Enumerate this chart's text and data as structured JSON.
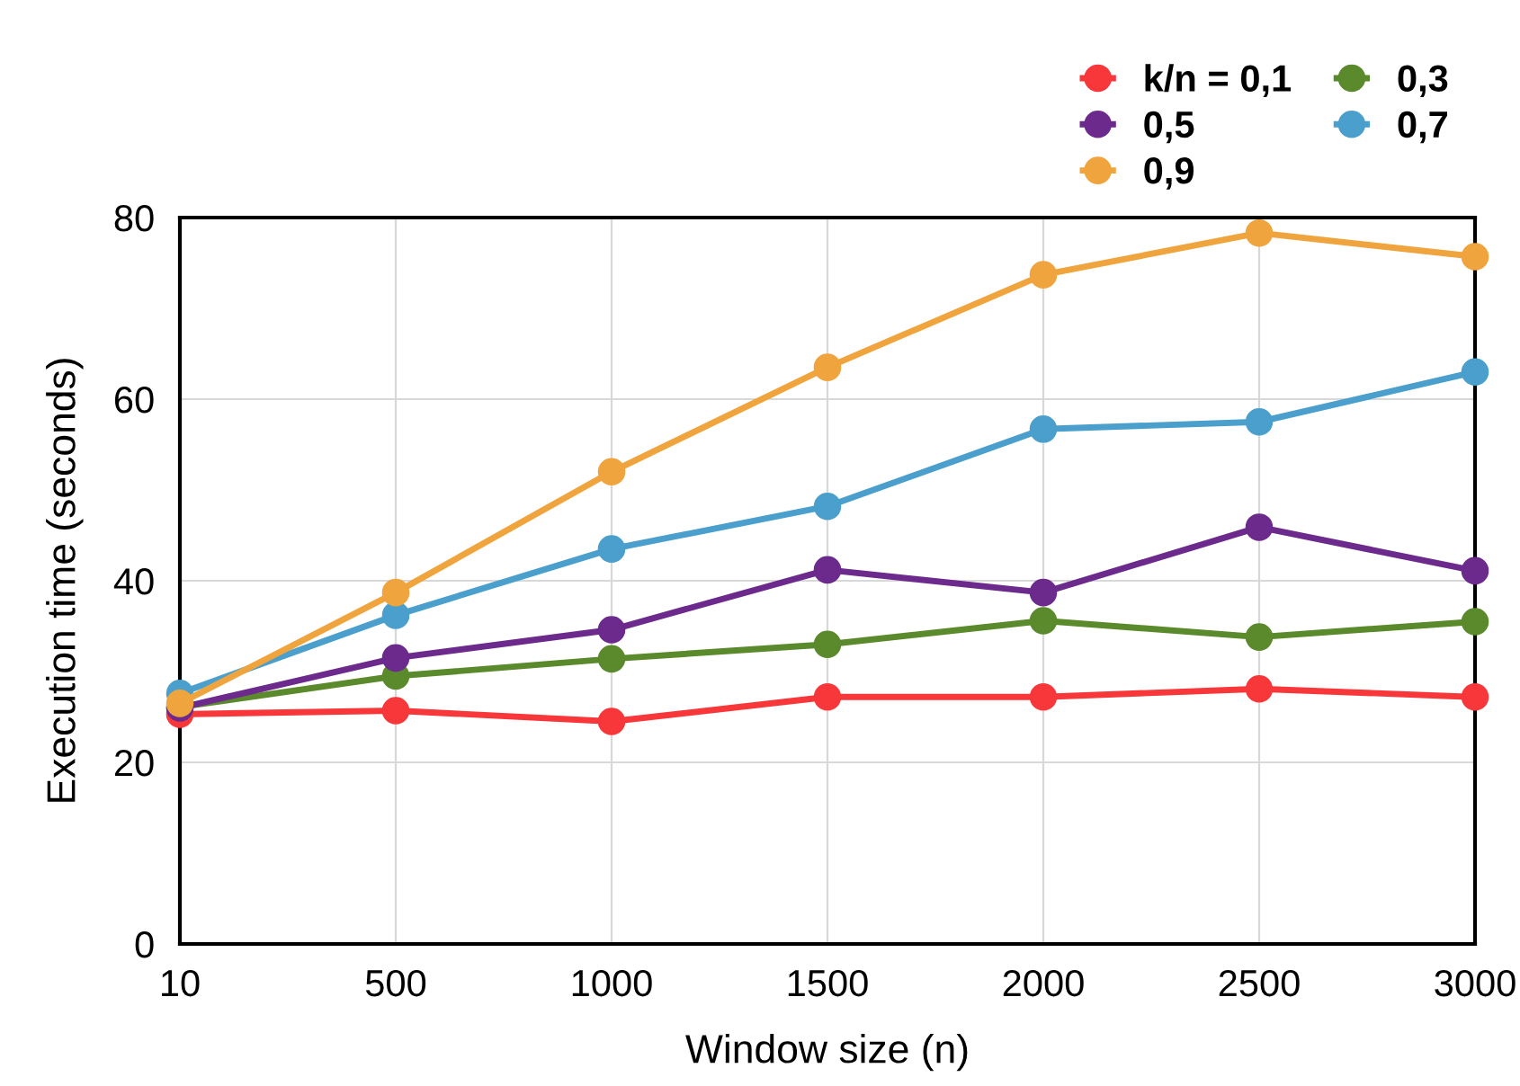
{
  "chart_data": {
    "type": "line",
    "xlabel": "Window size (n)",
    "ylabel": "Execution time (seconds)",
    "categories": [
      "10",
      "500",
      "1000",
      "1500",
      "2000",
      "2500",
      "3000"
    ],
    "series": [
      {
        "name": "k/n = 0,1",
        "color": "#f7373a",
        "values": [
          25.3,
          25.7,
          24.5,
          27.2,
          27.2,
          28.1,
          27.2
        ]
      },
      {
        "name": "0,3",
        "color": "#5a8a2c",
        "values": [
          26.1,
          29.5,
          31.4,
          33.0,
          35.6,
          33.8,
          35.5
        ]
      },
      {
        "name": "0,5",
        "color": "#6b2a8c",
        "values": [
          26.0,
          31.5,
          34.6,
          41.2,
          38.7,
          45.9,
          41.1
        ]
      },
      {
        "name": "0,7",
        "color": "#4a9fcc",
        "values": [
          27.6,
          36.2,
          43.5,
          48.2,
          56.7,
          57.5,
          63.0
        ]
      },
      {
        "name": "0,9",
        "color": "#f0a43e",
        "values": [
          26.5,
          38.7,
          52.0,
          63.5,
          73.7,
          78.3,
          75.7
        ]
      }
    ],
    "ylim": [
      0,
      80
    ],
    "yticks": [
      0,
      20,
      40,
      60,
      80
    ],
    "grid": true,
    "legend": "top right",
    "marker": "circle",
    "line_style": "solid"
  }
}
